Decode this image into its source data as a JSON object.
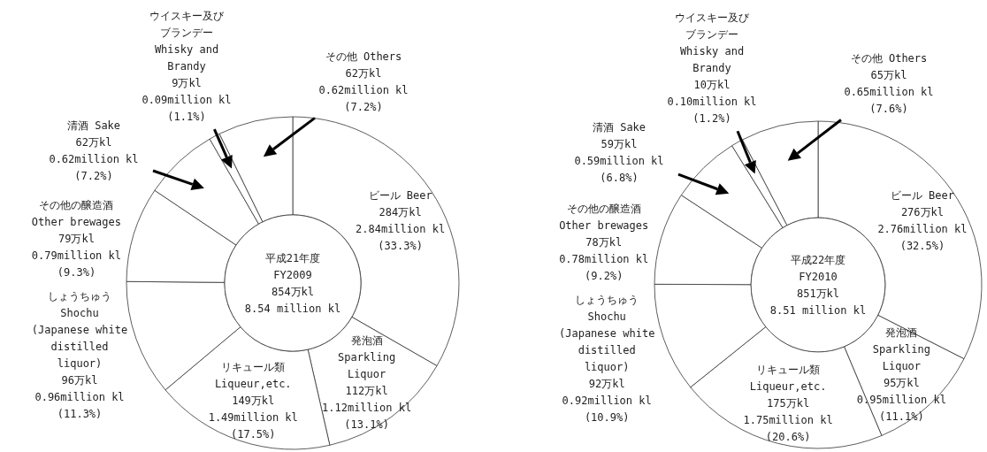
{
  "chart_data": [
    {
      "type": "donut",
      "title": "平成21年度\nFY2009\n854万kl\n8.54 million kl",
      "categories": [
        "ビール Beer",
        "発泡酒\nSparkling\nLiquor",
        "リキュール類\nLiqueur,etc.",
        "しょうちゅう\nShochu\n(Japanese white\ndistilled\nliquor)",
        "その他の醸造酒\nOther brewages",
        "清酒 Sake",
        "ウイスキー及びブランデー\nWhisky  and\nBrandy",
        "その他 Others"
      ],
      "values": [
        284,
        112,
        149,
        96,
        79,
        62,
        9,
        62
      ],
      "value_labels": [
        "284万kl\n2.84million kl\n(33.3%)",
        "112万kl\n1.12million kl\n(13.1%)",
        "149万kl\n1.49million kl\n(17.5%)",
        "96万kl\n0.96million kl\n(11.3%)",
        "79万kl\n0.79million kl\n(9.3%)",
        "62万kl\n0.62million kl\n(7.2%)",
        "9万kl\n0.09million kl\n(1.1%)",
        "62万kl\n0.62million kl\n(7.2%)"
      ],
      "colors": [
        "#ffffff",
        "#ffffff",
        "#ffffff",
        "#ffffff",
        "#ffffff",
        "#ffffff",
        "#ffffff",
        "#ffffff"
      ]
    },
    {
      "type": "donut",
      "title": "平成22年度\nFY2010\n851万kl\n8.51 million kl",
      "categories": [
        "ビール Beer",
        "発泡酒\nSparkling\nLiquor",
        "リキュール類\nLiqueur,etc.",
        "しょうちゅう\nShochu\n(Japanese white\ndistilled\nliquor)",
        "その他の醸造酒\nOther brewages",
        "清酒 Sake",
        "ウイスキー及びブランデー\nWhisky  and\nBrandy",
        "その他 Others"
      ],
      "values": [
        276,
        95,
        175,
        92,
        78,
        59,
        10,
        65
      ],
      "value_labels": [
        "276万kl\n2.76million kl\n(32.5%)",
        "95万kl\n0.95million kl\n(11.1%)",
        "175万kl\n1.75million kl\n(20.6%)",
        "92万kl\n0.92million kl\n(10.9%)",
        "78万kl\n0.78million kl\n(9.2%)",
        "59万kl\n0.59million kl\n(6.8%)",
        "10万kl\n0.10million kl\n(1.2%)",
        "65万kl\n0.65million kl\n(7.6%)"
      ],
      "colors": [
        "#ffffff",
        "#ffffff",
        "#ffffff",
        "#ffffff",
        "#ffffff",
        "#ffffff",
        "#ffffff",
        "#ffffff"
      ]
    }
  ]
}
